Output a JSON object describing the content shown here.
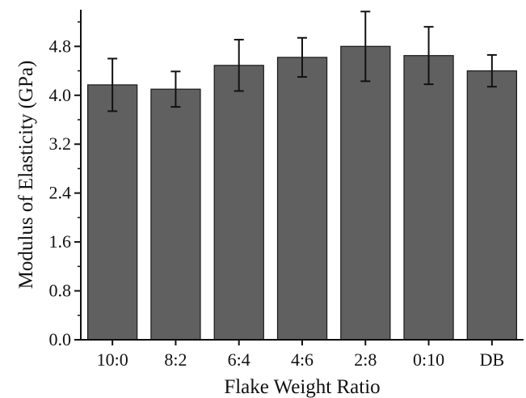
{
  "chart_data": {
    "type": "bar",
    "categories": [
      "10:0",
      "8:2",
      "6:4",
      "4:6",
      "2:8",
      "0:10",
      "DB"
    ],
    "values": [
      4.17,
      4.1,
      4.49,
      4.62,
      4.8,
      4.65,
      4.4
    ],
    "error": [
      0.43,
      0.29,
      0.42,
      0.32,
      0.57,
      0.47,
      0.26
    ],
    "xlabel": "Flake Weight Ratio",
    "ylabel": "Modulus of Elasticity (GPa)",
    "ylim": [
      0,
      5.4
    ],
    "yticks": [
      "0.0",
      "0.8",
      "1.6",
      "2.4",
      "3.2",
      "4.0",
      "4.8"
    ],
    "bar_color": "#606060",
    "bar_edge_color": "#1a1a1a",
    "grid": false,
    "legend": "none"
  }
}
